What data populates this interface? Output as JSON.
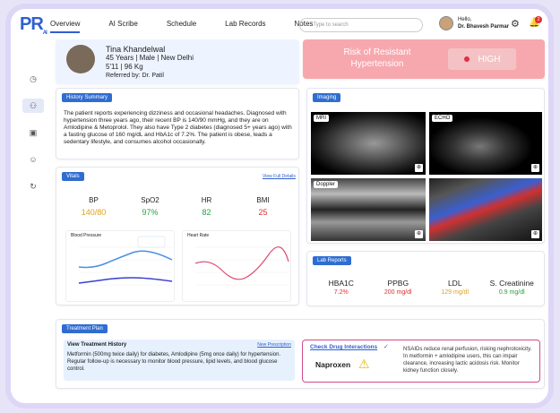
{
  "app": {
    "logo": "PR",
    "logo_sub": "AI",
    "nav": [
      "Overview",
      "AI Scribe",
      "Schedule",
      "Lab Records",
      "Notes"
    ],
    "search_placeholder": "Type to search",
    "user_greeting": "Hello,",
    "user_name": "Dr. Bhavesh Parmar",
    "notifications": "2"
  },
  "patient": {
    "name": "Tina Khandelwal",
    "line1": "45 Years | Male | New Delhi",
    "line2": "5'11 | 96 Kg",
    "referred": "Referred by: Dr. Patil"
  },
  "risk": {
    "title": "Risk of Resistant Hypertension",
    "level": "HIGH",
    "color": "#f7a8ae"
  },
  "history": {
    "tag": "History Summary",
    "text": "The patient reports experiencing dizziness and occasional headaches. Diagnosed with hypertension three years ago, their recent BP is 140/90 mmHg, and they are on Amlodipine & Metoprolol. They also have Type 2 diabetes (diagnosed 5+ years ago) with a fasting glucose of 160 mg/dL and HbA1c of 7.2%. The patient is obese, leads a sedentary lifestyle, and consumes alcohol occasionally."
  },
  "imaging": {
    "tag": "Imaging",
    "images": [
      "MRI",
      "ECHO",
      "Doppler",
      ""
    ]
  },
  "vitals": {
    "tag": "Vitals",
    "link": "View Full Details",
    "items": [
      {
        "label": "BP",
        "value": "140/80",
        "color": "#e0a020"
      },
      {
        "label": "SpO2",
        "value": "97%",
        "color": "#2aa040"
      },
      {
        "label": "HR",
        "value": "82",
        "color": "#2aa040"
      },
      {
        "label": "BMI",
        "value": "25",
        "color": "#e03030"
      }
    ]
  },
  "charts": {
    "bp_title": "Blood Pressure",
    "hr_title": "Heart Rate"
  },
  "labs": {
    "tag": "Lab Reports",
    "items": [
      {
        "label": "HBA1C",
        "value": "7.2%",
        "color": "#e03030"
      },
      {
        "label": "PPBG",
        "value": "200 mg/dl",
        "color": "#e03030"
      },
      {
        "label": "LDL",
        "value": "129 mg/dl",
        "color": "#e0a020"
      },
      {
        "label": "S. Creatinine",
        "value": "0.9 mg/dl",
        "color": "#2aa040"
      }
    ]
  },
  "treatment": {
    "tag": "Treatment Plan",
    "history_title": "View Treatment History",
    "new_prescription": "New Prescription",
    "text": "Metformin (500mg twice daily) for diabetes,  Amlodipine (5mg once daily) for hypertension. Regular follow-up is necessary to monitor blood pressure, lipid levels, and blood glucose control."
  },
  "drug": {
    "title": "Check Drug Interactions",
    "name": "Naproxen",
    "text": "NSAIDs reduce renal perfusion, risking nephrotoxicity. In metformin + amlodipine users, this can impair clearance, increasing lactic acidosis risk. Monitor kidney function closely."
  }
}
